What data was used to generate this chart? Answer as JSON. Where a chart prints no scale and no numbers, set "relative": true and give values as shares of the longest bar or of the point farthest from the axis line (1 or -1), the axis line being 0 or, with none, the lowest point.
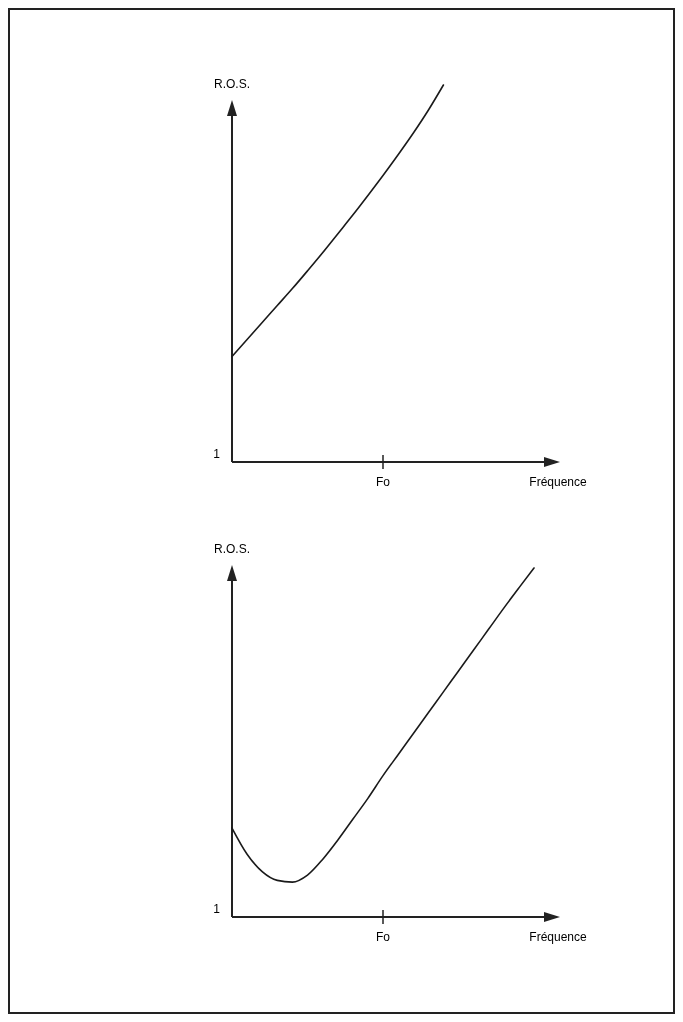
{
  "chart_data": [
    {
      "type": "line",
      "ylabel": "R.O.S.",
      "xlabel": "Fréquence",
      "relative": true,
      "annotations": [
        "1",
        "Fo"
      ],
      "categories": [
        null,
        null,
        null,
        null,
        null,
        null,
        null,
        null,
        null,
        null,
        null,
        null,
        null,
        null,
        null,
        null,
        null,
        null,
        null,
        null,
        null
      ],
      "series": [
        {
          "color": "#1a1a1a",
          "values": [
            0.28,
            0.325,
            0.37,
            0.415,
            0.46,
            0.507,
            0.555,
            0.605,
            0.655,
            0.707,
            0.76,
            0.815,
            0.872,
            0.933,
            1.0,
            null,
            null,
            null,
            null,
            null,
            null
          ]
        }
      ]
    },
    {
      "type": "line",
      "ylabel": "R.O.S.",
      "xlabel": "Fréquence",
      "relative": true,
      "annotations": [
        "1",
        "Fo"
      ],
      "categories": [
        null,
        null,
        null,
        null,
        null,
        null,
        null,
        null,
        null,
        null,
        null,
        null,
        null,
        null,
        null,
        null,
        null,
        null,
        null,
        null,
        null
      ],
      "series": [
        {
          "color": "#1a1a1a",
          "values": [
            0.255,
            0.18,
            0.13,
            0.105,
            0.1,
            0.12,
            0.165,
            0.22,
            0.28,
            0.34,
            0.405,
            0.465,
            0.525,
            0.585,
            0.645,
            0.705,
            0.765,
            0.825,
            0.885,
            0.943,
            1.0
          ]
        }
      ]
    }
  ]
}
